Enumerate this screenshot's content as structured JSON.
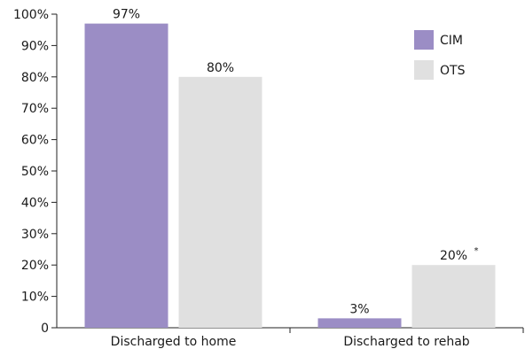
{
  "chart_data": {
    "type": "bar",
    "categories": [
      "Discharged to home",
      "Discharged to rehab"
    ],
    "series": [
      {
        "name": "CIM",
        "values": [
          97,
          3
        ],
        "labels": [
          "97%",
          "3%"
        ],
        "color": "#9b8dc5"
      },
      {
        "name": "OTS",
        "values": [
          80,
          20
        ],
        "labels": [
          "80%",
          "20%"
        ],
        "color": "#e0e0e0"
      }
    ],
    "annotations": [
      {
        "series": 1,
        "category": 1,
        "marker": "*"
      }
    ],
    "y_ticks": [
      "0",
      "10%",
      "20%",
      "30%",
      "40%",
      "50%",
      "60%",
      "70%",
      "80%",
      "90%",
      "100%"
    ],
    "ylim": [
      0,
      100
    ],
    "title": "",
    "xlabel": "",
    "ylabel": "",
    "grid": false,
    "legend_position": "top-right"
  }
}
